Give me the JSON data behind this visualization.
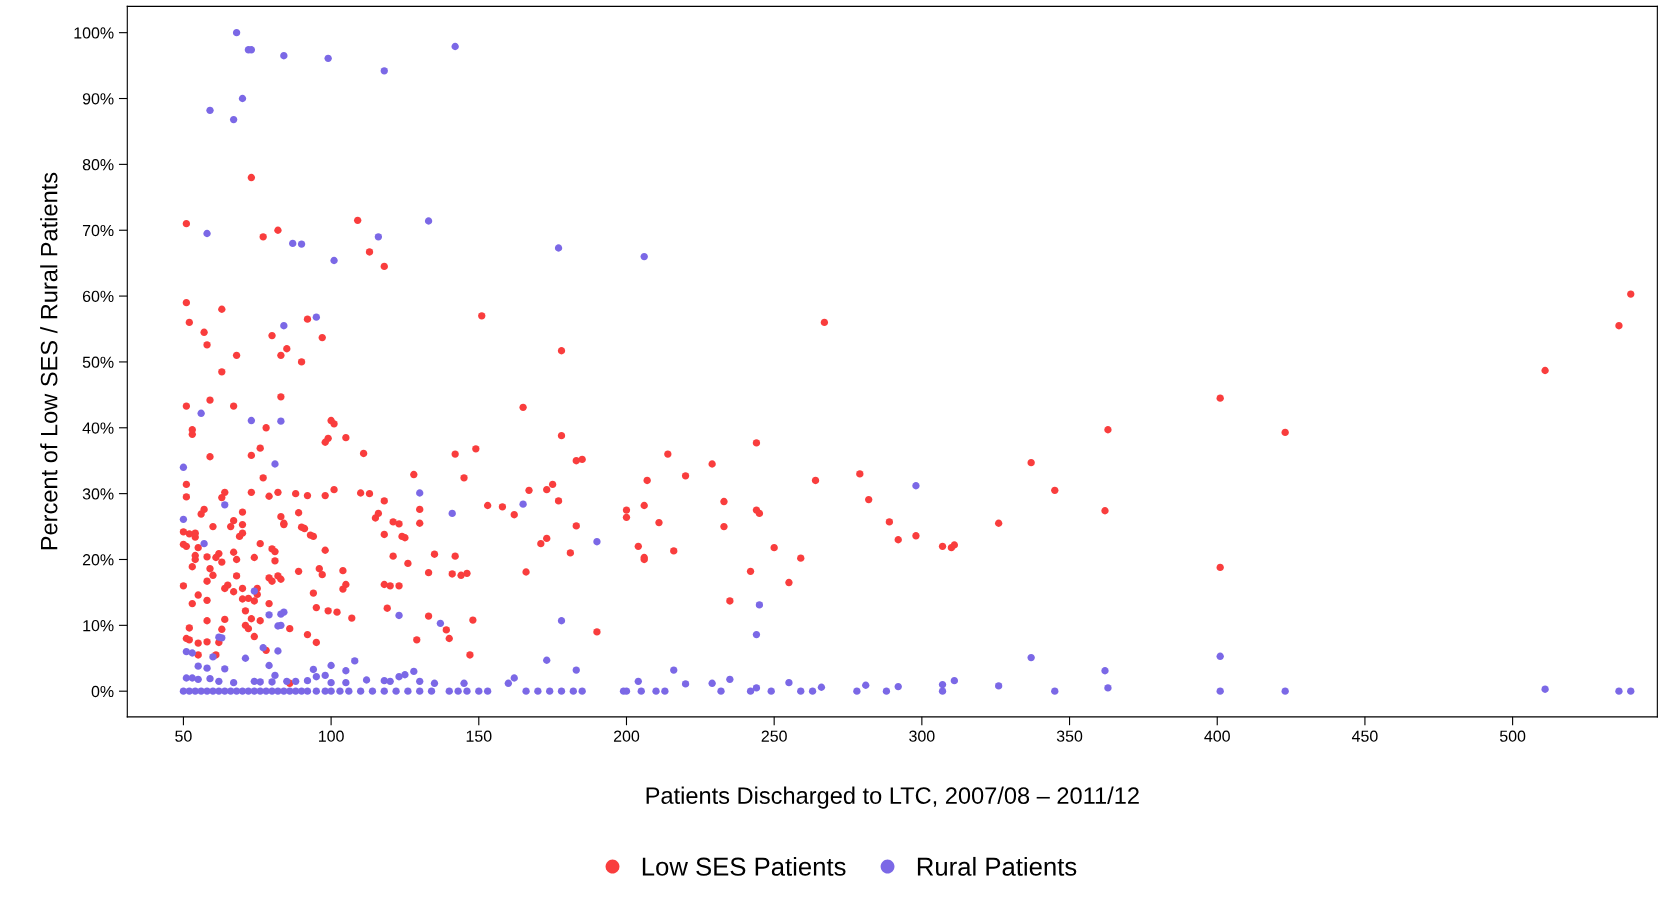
{
  "chart_data": {
    "type": "scatter",
    "xlabel": "Patients Discharged to LTC, 2007/08 – 2011/12",
    "ylabel": "Percent of Low SES / Rural Patients",
    "xlim": [
      31,
      549
    ],
    "xticks": [
      50,
      100,
      150,
      200,
      250,
      300,
      350,
      400,
      450,
      500
    ],
    "ylim": [
      -3.9,
      104
    ],
    "yticks": [
      {
        "value": 0,
        "label": "0%"
      },
      {
        "value": 10,
        "label": "10%"
      },
      {
        "value": 20,
        "label": "20%"
      },
      {
        "value": 30,
        "label": "30%"
      },
      {
        "value": 40,
        "label": "40%"
      },
      {
        "value": 50,
        "label": "50%"
      },
      {
        "value": 60,
        "label": "60%"
      },
      {
        "value": 70,
        "label": "70%"
      },
      {
        "value": 80,
        "label": "80%"
      },
      {
        "value": 90,
        "label": "90%"
      },
      {
        "value": 100,
        "label": "100%"
      }
    ],
    "grid": false,
    "legend": "bottom",
    "marker": "circle",
    "series": [
      {
        "name": "Low SES Patients",
        "color": "#f93d3d",
        "x": [
          51,
          73,
          77,
          82,
          109,
          113,
          118,
          51,
          52,
          63,
          57,
          58,
          68,
          63,
          80,
          85,
          83,
          90,
          92,
          97,
          151,
          178,
          267,
          536,
          540,
          511,
          401,
          423,
          363,
          362,
          401,
          337,
          345,
          326,
          307,
          310,
          311,
          298,
          292,
          289,
          282,
          279,
          264,
          259,
          255,
          250,
          244,
          244,
          245,
          242,
          235,
          233,
          233,
          229,
          220,
          216,
          214,
          211,
          207,
          206,
          206,
          206,
          204,
          200,
          200,
          190,
          185,
          183,
          183,
          181,
          178,
          177,
          175,
          173,
          173,
          171,
          166,
          167,
          165,
          162,
          158,
          153,
          149,
          148,
          147,
          146,
          145,
          144,
          142,
          142,
          141,
          139,
          140,
          135,
          133,
          133,
          130,
          130,
          128,
          129,
          126,
          125,
          124,
          123,
          123,
          121,
          121,
          120,
          119,
          118,
          118,
          118,
          116,
          115,
          113,
          110,
          111,
          107,
          105,
          105,
          104,
          104,
          102,
          101,
          101,
          100,
          99,
          98,
          99,
          98,
          98,
          97,
          96,
          95,
          95,
          94,
          94,
          93,
          92,
          92,
          91,
          90,
          89,
          89,
          88,
          86,
          86,
          84,
          84,
          83,
          83,
          83,
          82,
          82,
          81,
          80,
          81,
          80,
          79,
          79,
          79,
          78,
          77,
          78,
          76,
          76,
          76,
          75,
          75,
          74,
          74,
          74,
          73,
          73,
          73,
          72,
          72,
          71,
          71,
          70,
          70,
          70,
          70,
          70,
          69,
          68,
          68,
          67,
          67,
          67,
          67,
          66,
          65,
          64,
          64,
          64,
          63,
          63,
          63,
          62,
          62,
          61,
          61,
          60,
          60,
          59,
          59,
          59,
          58,
          58,
          58,
          58,
          58,
          57,
          56,
          55,
          55,
          55,
          55,
          54,
          54,
          54,
          54,
          53,
          53,
          53,
          53,
          52,
          52,
          52,
          51,
          51,
          51,
          51,
          50,
          50,
          50,
          51
        ],
        "values": [
          71,
          78,
          69,
          70,
          71.5,
          66.7,
          64.5,
          59,
          56,
          58,
          54.5,
          52.6,
          51,
          48.5,
          54,
          52,
          51,
          50,
          56.5,
          53.7,
          57,
          51.7,
          56,
          55.5,
          60.3,
          48.7,
          44.5,
          39.3,
          39.7,
          27.4,
          18.8,
          34.7,
          30.5,
          25.5,
          22,
          21.8,
          22.2,
          23.6,
          23,
          25.7,
          29.1,
          33,
          32,
          20.2,
          16.5,
          21.8,
          37.7,
          27.5,
          27,
          18.2,
          13.7,
          28.8,
          25,
          34.5,
          32.7,
          21.3,
          36,
          25.6,
          32,
          28.2,
          20.3,
          20,
          22,
          26.4,
          27.5,
          9,
          35.2,
          35,
          25.1,
          21,
          38.8,
          28.9,
          31.4,
          30.6,
          23.2,
          22.4,
          18.1,
          30.5,
          43.1,
          26.8,
          28,
          28.2,
          36.8,
          10.8,
          5.5,
          17.9,
          32.4,
          17.6,
          36,
          20.5,
          17.8,
          9.3,
          8,
          20.8,
          11.4,
          18,
          27.6,
          25.5,
          32.9,
          7.8,
          19.4,
          23.3,
          23.5,
          16,
          25.4,
          25.7,
          20.5,
          16,
          12.6,
          28.9,
          16.2,
          23.8,
          27,
          26.3,
          30,
          30.1,
          36.1,
          11.1,
          38.5,
          16.2,
          15.5,
          18.3,
          12,
          30.6,
          40.6,
          41.1,
          38.4,
          37.8,
          12.2,
          21.4,
          29.7,
          17.7,
          18.6,
          12.7,
          7.4,
          14.9,
          23.5,
          23.7,
          8.6,
          29.7,
          24.7,
          24.9,
          27.1,
          18.2,
          30,
          1.2,
          9.5,
          25.3,
          25.5,
          26.5,
          44.7,
          17,
          17.5,
          30.2,
          19.8,
          16.7,
          21.2,
          21.6,
          13.3,
          17.2,
          29.6,
          40,
          32.4,
          6.2,
          36.9,
          22.4,
          10.7,
          15.6,
          14.7,
          20.3,
          13.7,
          8.3,
          11,
          35.8,
          30.2,
          14.1,
          9.5,
          12.2,
          10,
          14,
          27.2,
          25.3,
          24,
          15.6,
          23.5,
          20,
          17.5,
          25.9,
          21.1,
          43.3,
          15.1,
          25,
          16.1,
          15.6,
          10.9,
          30.2,
          9.4,
          19.6,
          29.4,
          20.9,
          7.4,
          5.5,
          20.3,
          25,
          17.6,
          35.6,
          44.2,
          18.6,
          13.8,
          10.7,
          7.5,
          20.4,
          16.7,
          27.6,
          26.9,
          7.3,
          5.5,
          14.6,
          21.8,
          20.6,
          23.4,
          20,
          24,
          18.9,
          13.3,
          39,
          39.7,
          7.8,
          9.6,
          23.9,
          29.5,
          31.4,
          43.3,
          22,
          16,
          24.2,
          22.3,
          8
        ]
      },
      {
        "name": "Rural Patients",
        "color": "#7b68e6",
        "x": [
          68,
          72,
          73,
          84,
          99,
          142,
          118,
          70,
          59,
          67,
          58,
          87,
          90,
          101,
          116,
          133,
          177,
          206,
          84,
          95,
          56,
          73,
          83,
          81,
          50,
          298,
          130,
          141,
          165,
          64,
          50,
          190,
          57,
          74,
          84,
          83,
          79,
          123,
          137,
          178,
          245,
          244,
          62,
          63,
          82,
          83,
          51,
          53,
          77,
          82,
          60,
          71,
          108,
          173,
          183,
          216,
          337,
          362,
          401,
          55,
          58,
          64,
          79,
          94,
          100,
          105,
          128,
          123,
          125,
          98,
          95,
          81,
          51,
          53,
          55,
          59,
          62,
          67,
          74,
          76,
          80,
          85,
          88,
          92,
          100,
          105,
          112,
          118,
          120,
          130,
          135,
          145,
          160,
          162,
          204,
          220,
          229,
          235,
          255,
          281,
          292,
          307,
          311,
          326,
          363,
          511,
          244,
          266,
          50,
          52,
          54,
          56,
          58,
          60,
          62,
          64,
          66,
          68,
          70,
          72,
          74,
          76,
          78,
          80,
          82,
          84,
          86,
          88,
          90,
          92,
          95,
          98,
          100,
          103,
          106,
          110,
          114,
          118,
          122,
          126,
          130,
          134,
          140,
          143,
          146,
          150,
          153,
          166,
          170,
          174,
          178,
          182,
          185,
          199,
          200,
          205,
          210,
          213,
          232,
          242,
          249,
          259,
          263,
          278,
          288,
          307,
          345,
          401,
          423,
          536,
          540
        ],
        "values": [
          100,
          97.4,
          97.4,
          96.5,
          96.1,
          97.9,
          94.2,
          90,
          88.2,
          86.8,
          69.5,
          68,
          67.9,
          65.4,
          69,
          71.4,
          67.3,
          66,
          55.5,
          56.8,
          42.2,
          41.1,
          41,
          34.5,
          34,
          31.2,
          30.1,
          27,
          28.4,
          28.3,
          26.1,
          22.7,
          22.4,
          15.2,
          12,
          11.7,
          11.6,
          11.5,
          10.3,
          10.7,
          13.1,
          8.6,
          8.2,
          8.1,
          9.9,
          10,
          6,
          5.8,
          6.6,
          6.1,
          5.2,
          5,
          4.6,
          4.7,
          3.2,
          3.2,
          5.1,
          3.1,
          5.3,
          3.8,
          3.5,
          3.4,
          3.9,
          3.3,
          3.9,
          3.1,
          3,
          2.2,
          2.5,
          2.4,
          2.2,
          2.4,
          2,
          2,
          1.8,
          1.9,
          1.5,
          1.3,
          1.5,
          1.4,
          1.4,
          1.5,
          1.5,
          1.6,
          1.3,
          1.3,
          1.7,
          1.6,
          1.5,
          1.5,
          1.2,
          1.2,
          1.2,
          2,
          1.5,
          1.1,
          1.2,
          1.8,
          1.3,
          0.9,
          0.7,
          1,
          1.6,
          0.8,
          0.5,
          0.3,
          0.5,
          0.6,
          0,
          0,
          0,
          0,
          0,
          0,
          0,
          0,
          0,
          0,
          0,
          0,
          0,
          0,
          0,
          0,
          0,
          0,
          0,
          0,
          0,
          0,
          0,
          0,
          0,
          0,
          0,
          0,
          0,
          0,
          0,
          0,
          0,
          0,
          0,
          0,
          0,
          0,
          0,
          0,
          0,
          0,
          0,
          0,
          0,
          0,
          0,
          0,
          0,
          0,
          0,
          0,
          0,
          0,
          0,
          0,
          0,
          0,
          0,
          0,
          0,
          0,
          0
        ]
      }
    ]
  }
}
